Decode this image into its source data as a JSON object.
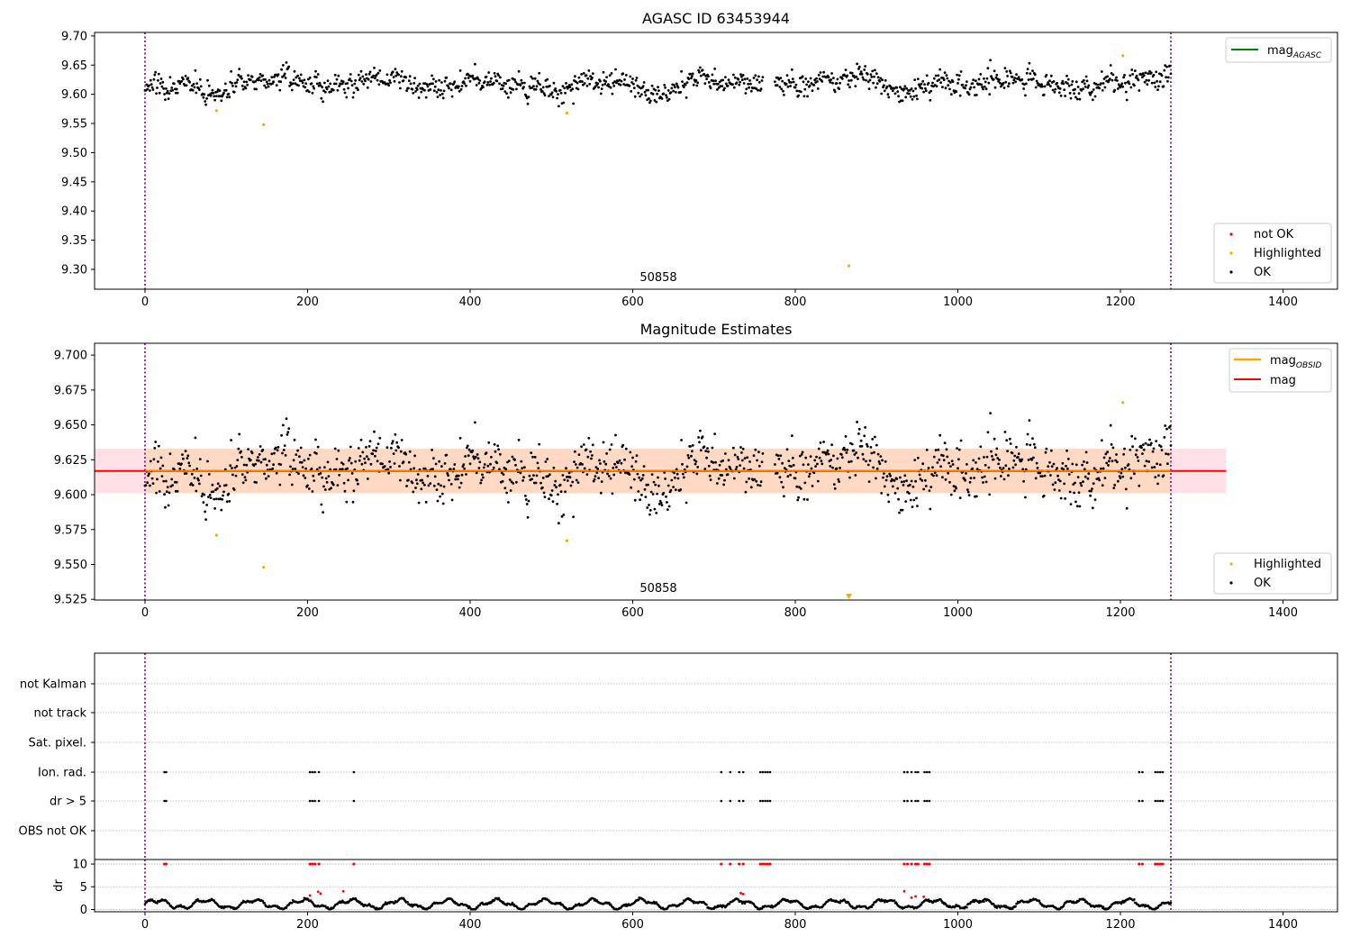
{
  "chart_data": [
    {
      "type": "scatter",
      "title": "AGASC ID 63453944",
      "xlim": [
        -62,
        1467
      ],
      "ylim": [
        9.266,
        9.706
      ],
      "xticks": [
        "0",
        "200",
        "400",
        "600",
        "800",
        "1000",
        "1200",
        "1400"
      ],
      "yticks": [
        "9.30",
        "9.35",
        "9.40",
        "9.45",
        "9.50",
        "9.55",
        "9.60",
        "9.65",
        "9.70"
      ],
      "obsid_boundaries": [
        0,
        1262
      ],
      "obsid_label": "50858",
      "legend_top": [
        {
          "name": "mag",
          "sub": "AGASC",
          "color": "#008000"
        }
      ],
      "legend_bottom": [
        {
          "name": "not OK",
          "color": "#ff0000"
        },
        {
          "name": "Highlighted",
          "color": "#ffa500"
        },
        {
          "name": "OK",
          "color": "#000000"
        }
      ],
      "highlighted_points": [
        [
          88,
          9.572
        ],
        [
          146,
          9.548
        ],
        [
          519,
          9.568
        ],
        [
          866,
          9.306
        ],
        [
          1203,
          9.666
        ]
      ],
      "ok_series": {
        "x_start": 0,
        "x_end": 1262,
        "center": 9.617,
        "spread": 0.015
      }
    },
    {
      "type": "scatter",
      "title": "Magnitude Estimates",
      "xlim": [
        -62,
        1467
      ],
      "ylim": [
        9.5245,
        9.7085
      ],
      "xticks": [
        "0",
        "200",
        "400",
        "600",
        "800",
        "1000",
        "1200",
        "1400"
      ],
      "yticks": [
        "9.525",
        "9.550",
        "9.575",
        "9.600",
        "9.625",
        "9.650",
        "9.675",
        "9.700"
      ],
      "obsid_boundaries": [
        0,
        1262
      ],
      "obsid_label": "50858",
      "mag": 9.617,
      "mag_band": [
        9.601,
        9.633
      ],
      "band_xlim": [
        -62,
        1330
      ],
      "legend_top": [
        {
          "name": "mag",
          "sub": "OBSID",
          "color": "#ffa500"
        },
        {
          "name": "mag",
          "sub": "",
          "color": "#ff0000"
        }
      ],
      "legend_bottom": [
        {
          "name": "Highlighted",
          "color": "#ffa500"
        },
        {
          "name": "OK",
          "color": "#000000"
        }
      ],
      "highlighted_points": [
        [
          88,
          9.571
        ],
        [
          146,
          9.548
        ],
        [
          519,
          9.567
        ],
        [
          1203,
          9.666
        ]
      ],
      "offscale_marker": [
        866,
        9.527
      ]
    },
    {
      "type": "scatter",
      "title": "",
      "xlim": [
        -62,
        1467
      ],
      "xticks": [
        "0",
        "200",
        "400",
        "600",
        "800",
        "1000",
        "1200",
        "1400"
      ],
      "flag_rows": [
        "not Kalman",
        "not track",
        "Sat. pixel.",
        "Ion. rad.",
        "dr > 5",
        "OBS not OK"
      ],
      "flagged_x": [
        24,
        26,
        203,
        206,
        209,
        214,
        257,
        709,
        720,
        731,
        736,
        757,
        760,
        763,
        766,
        769,
        934,
        938,
        943,
        948,
        951,
        959,
        962,
        965,
        1223,
        1227,
        1243,
        1246,
        1249,
        1252
      ],
      "obsid_boundaries": [
        0,
        1262
      ]
    },
    {
      "type": "scatter",
      "ylabel": "dr",
      "xlim": [
        -62,
        1467
      ],
      "ylim": [
        -0.5,
        11
      ],
      "xticks": [
        "0",
        "200",
        "400",
        "600",
        "800",
        "1000",
        "1200",
        "1400"
      ],
      "yticks": [
        "0",
        "5",
        "10"
      ],
      "clip_value": 10,
      "dr_outliers": [
        [
          203,
          3.1
        ],
        [
          213,
          3.9
        ],
        [
          216,
          3.5
        ],
        [
          244,
          4.0
        ],
        [
          733,
          3.6
        ],
        [
          736,
          3.4
        ],
        [
          934,
          4.0
        ],
        [
          943,
          2.6
        ],
        [
          948,
          2.9
        ],
        [
          958,
          2.8
        ]
      ],
      "obsid_boundaries": [
        0,
        1262
      ]
    }
  ]
}
